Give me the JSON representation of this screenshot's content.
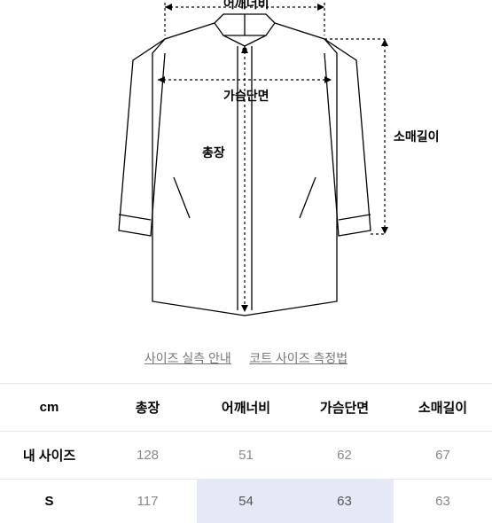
{
  "diagram": {
    "labels": {
      "shoulder": "어깨너비",
      "chest": "가슴단면",
      "length": "총장",
      "sleeve": "소매길이"
    },
    "stroke": "#000000",
    "stroke_width": 1.2,
    "dash": "3,3",
    "background": "#ffffff"
  },
  "links": {
    "guide": "사이즈 실측 안내",
    "measure": "코트 사이즈 측정법"
  },
  "table": {
    "unit_header": "cm",
    "columns": [
      "총장",
      "어깨너비",
      "가슴단면",
      "소매길이"
    ],
    "rows": [
      {
        "label": "내 사이즈",
        "values": [
          "128",
          "51",
          "62",
          "67"
        ],
        "kind": "my"
      },
      {
        "label": "S",
        "values": [
          "117",
          "54",
          "63",
          "63"
        ],
        "kind": "s",
        "highlight": [
          1,
          2
        ]
      }
    ],
    "border_color": "#e6e6e6"
  }
}
